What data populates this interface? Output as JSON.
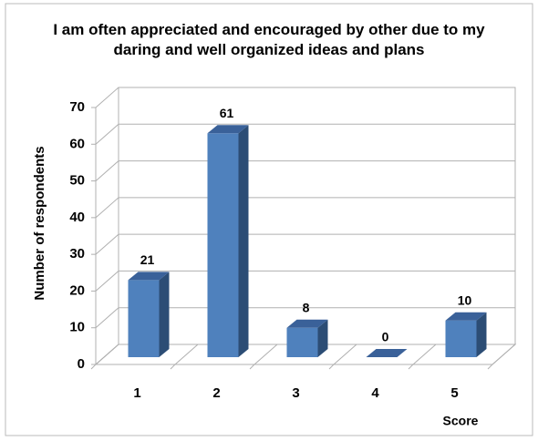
{
  "chart_data": {
    "type": "bar",
    "title": "I am often appreciated and encouraged by other due to my daring and well organized ideas and plans",
    "categories": [
      "1",
      "2",
      "3",
      "4",
      "5"
    ],
    "values": [
      21,
      61,
      8,
      0,
      10
    ],
    "color": "#4f81bd",
    "x_label": "Score",
    "y_label": "Number of respondents",
    "ylim": [
      0,
      70
    ],
    "yticks": [
      0,
      10,
      20,
      30,
      40,
      50,
      60,
      70
    ],
    "grid": true
  }
}
